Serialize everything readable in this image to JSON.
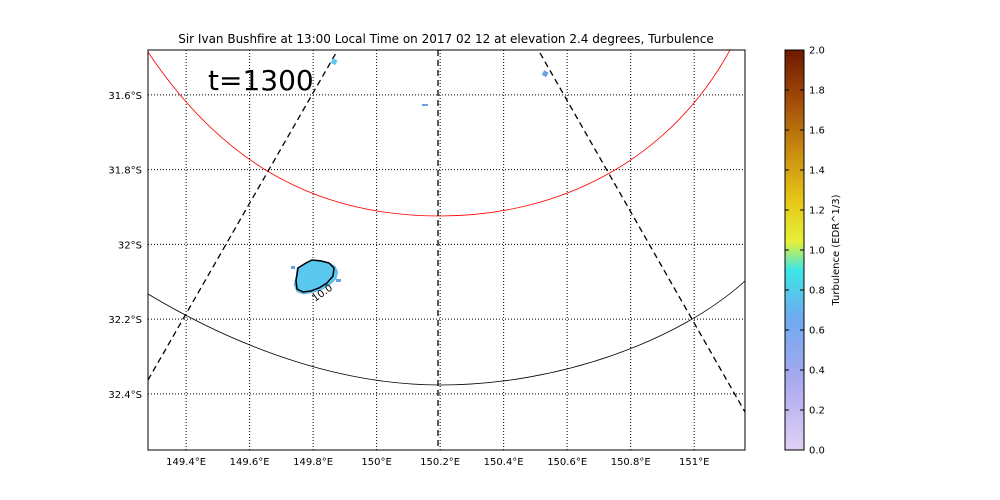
{
  "chart_data": {
    "type": "heatmap",
    "title": "Sir Ivan Bushfire at 13:00 Local Time on 2017 02 12 at elevation 2.4 degrees, Turbulence",
    "time_label": "t=1300",
    "x_ticks": [
      "149.4°E",
      "149.6°E",
      "149.8°E",
      "150°E",
      "150.2°E",
      "150.4°E",
      "150.6°E",
      "150.8°E",
      "151°E"
    ],
    "y_ticks": [
      "31.6°S",
      "31.8°S",
      "32°S",
      "32.2°S",
      "32.4°S"
    ],
    "xlim": [
      149.28,
      151.16
    ],
    "ylim_south": [
      31.48,
      32.55
    ],
    "grid": true,
    "contour_label": "10.0",
    "colorbar": {
      "label": "Turbulence (EDR^1/3)",
      "ticks": [
        "0.0",
        "0.2",
        "0.4",
        "0.6",
        "0.8",
        "1.0",
        "1.2",
        "1.4",
        "1.6",
        "1.8",
        "2.0"
      ],
      "range": [
        0,
        2
      ]
    },
    "colors": {
      "range_ring_red": "#ff0000",
      "range_ring_black": "#000000",
      "turbulence_patch": "#5bc8f0"
    }
  }
}
